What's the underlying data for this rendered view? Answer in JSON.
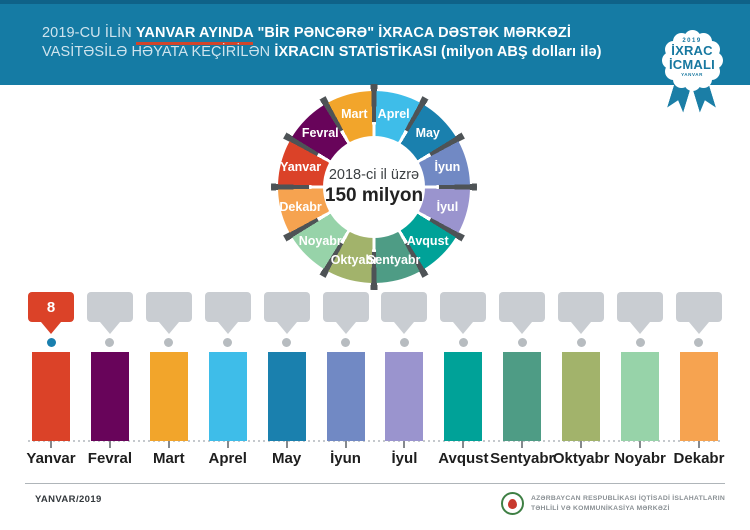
{
  "header": {
    "bg_color": "#157BA4",
    "line1_regular": "2019-CU İLİN ",
    "line1_underlined": "YANVAR AYINDA",
    "line1_bold": " \"BİR PƏNCƏRƏ\" İXRACA DƏSTƏK MƏRKƏZİ",
    "line2_regular": "VASİTƏSİLƏ HƏYATA KEÇİRİLƏN ",
    "line2_bold": "İXRACIN STATİSTİKASI (milyon ABŞ dolları ilə)",
    "underline_color": "#D0452B",
    "badge": {
      "year": "2019",
      "line1": "İXRAC",
      "line2": "İCMALI",
      "sub": "YANVAR"
    }
  },
  "months": [
    {
      "name": "Yanvar",
      "color": "#DB4228",
      "value": 8
    },
    {
      "name": "Fevral",
      "color": "#68045A",
      "value": null
    },
    {
      "name": "Mart",
      "color": "#F2A52B",
      "value": null
    },
    {
      "name": "Aprel",
      "color": "#3EBDE9",
      "value": null
    },
    {
      "name": "May",
      "color": "#1A80AE",
      "value": null
    },
    {
      "name": "İyun",
      "color": "#7189C4",
      "value": null
    },
    {
      "name": "İyul",
      "color": "#9A94CE",
      "value": null
    },
    {
      "name": "Avqust",
      "color": "#00A298",
      "value": null
    },
    {
      "name": "Sentyabr",
      "color": "#4E9C85",
      "value": null
    },
    {
      "name": "Oktyabr",
      "color": "#A2B36B",
      "value": null
    },
    {
      "name": "Noyabr",
      "color": "#97D3A9",
      "value": null
    },
    {
      "name": "Dekabr",
      "color": "#F6A350",
      "value": null
    }
  ],
  "donut": {
    "center_line1": "2018-ci il üzrə",
    "center_line2": "150 milyon",
    "separator_color": "#4E5356",
    "clockwise_start_month_index": 3
  },
  "bar_chart": {
    "callout_active_color": "#DB4228",
    "callout_color": "#C9CDD2",
    "dot_active_color": "#1A7FAE",
    "dot_color": "#B7BCC0"
  },
  "chart_data": [
    {
      "type": "pie",
      "subtype": "donut",
      "title": "2018-ci il üzrə 150 milyon",
      "categories": [
        "Yanvar",
        "Fevral",
        "Mart",
        "Aprel",
        "May",
        "İyun",
        "İyul",
        "Avqust",
        "Sentyabr",
        "Oktyabr",
        "Noyabr",
        "Dekabr"
      ],
      "values": [
        12.5,
        12.5,
        12.5,
        12.5,
        12.5,
        12.5,
        12.5,
        12.5,
        12.5,
        12.5,
        12.5,
        12.5
      ],
      "annotation": "12 bərabər seqment; ümumi 2018 = 150 milyon ABŞ dolları",
      "clockwise_from_top": [
        "Aprel",
        "May",
        "İyun",
        "İyul",
        "Avqust",
        "Sentyabr",
        "Oktyabr",
        "Noyabr",
        "Dekabr",
        "Yanvar",
        "Fevral",
        "Mart"
      ]
    },
    {
      "type": "bar",
      "categories": [
        "Yanvar",
        "Fevral",
        "Mart",
        "Aprel",
        "May",
        "İyun",
        "İyul",
        "Avqust",
        "Sentyabr",
        "Oktyabr",
        "Noyabr",
        "Dekabr"
      ],
      "values": [
        8,
        null,
        null,
        null,
        null,
        null,
        null,
        null,
        null,
        null,
        null,
        null
      ],
      "ylabel": "milyon ABŞ dolları",
      "annotation": "Yalnız Yanvar 2019 dəyəri (8) göstərilib; qalan aylar boş boz nişanla"
    }
  ],
  "footer": {
    "left": "YANVAR/2019",
    "org_line1": "AZƏRBAYCAN RESPUBLİKASI İQTİSADİ İSLAHATLARIN",
    "org_line2": "TƏHLİLİ VƏ KOMMUNİKASİYA MƏRKƏZİ"
  }
}
